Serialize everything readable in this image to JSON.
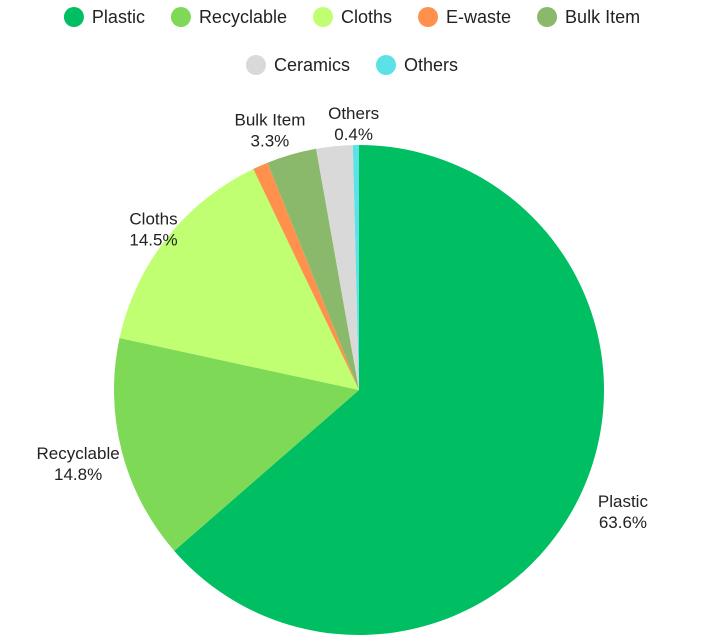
{
  "chart_data": {
    "type": "pie",
    "title": "",
    "legend_position": "top",
    "categories": [
      "Plastic",
      "Recyclable",
      "Cloths",
      "E-waste",
      "Bulk Item",
      "Ceramics",
      "Others"
    ],
    "values": [
      63.6,
      14.8,
      14.5,
      1.0,
      3.3,
      2.4,
      0.4
    ],
    "value_labels": [
      "63.6%",
      "14.8%",
      "14.5%",
      "",
      "3.3%",
      "",
      "0.4%"
    ],
    "colors": [
      "#00bf63",
      "#7ed957",
      "#c1ff72",
      "#ff914d",
      "#8bb96b",
      "#d9d9d9",
      "#5ce1e6"
    ],
    "labeled": [
      true,
      true,
      true,
      false,
      true,
      false,
      true
    ]
  }
}
